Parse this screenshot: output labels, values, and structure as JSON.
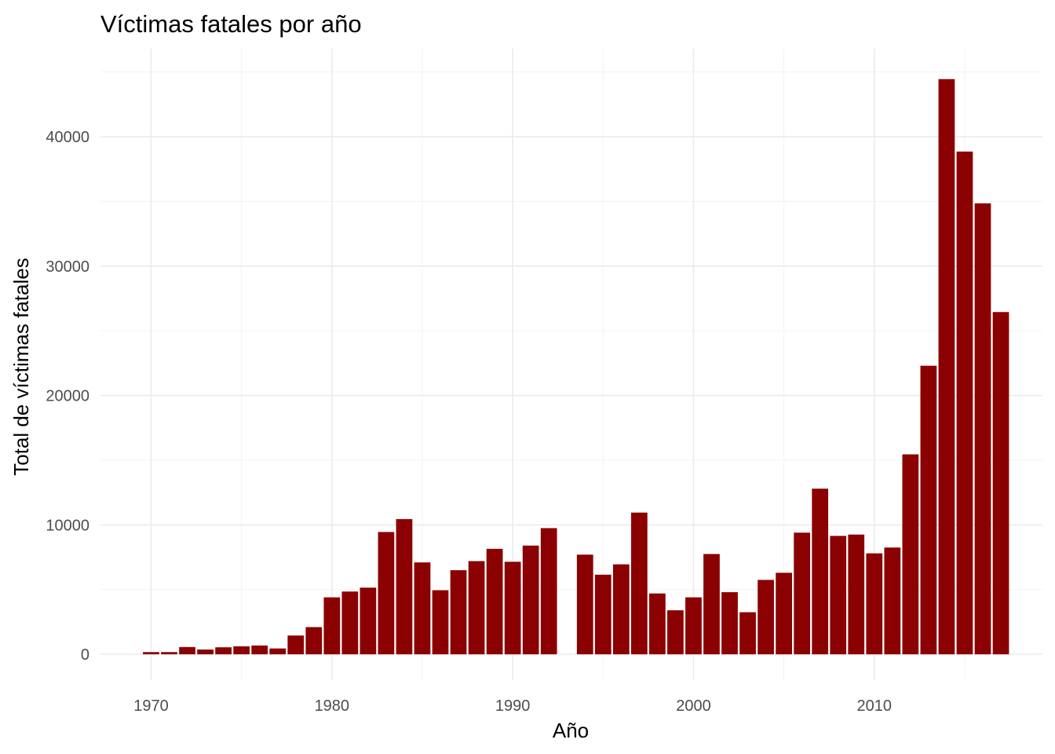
{
  "chart_data": {
    "type": "bar",
    "title": "Víctimas fatales por año",
    "xlabel": "Año",
    "ylabel": "Total de víctimas fatales",
    "bar_color": "#8B0000",
    "grid": true,
    "xlim": [
      1967.2,
      2019.3
    ],
    "ylim": [
      -2000,
      46800
    ],
    "x_ticks": [
      1970,
      1980,
      1990,
      2000,
      2010
    ],
    "y_ticks": [
      0,
      10000,
      20000,
      30000,
      40000
    ],
    "x_tick_labels": [
      "1970",
      "1980",
      "1990",
      "2000",
      "2010"
    ],
    "y_tick_labels": [
      "0",
      "10000",
      "20000",
      "30000",
      "40000"
    ],
    "x": [
      1970,
      1971,
      1972,
      1973,
      1974,
      1975,
      1976,
      1977,
      1978,
      1979,
      1980,
      1981,
      1982,
      1983,
      1984,
      1985,
      1986,
      1987,
      1988,
      1989,
      1990,
      1991,
      1992,
      1994,
      1995,
      1996,
      1997,
      1998,
      1999,
      2000,
      2001,
      2002,
      2003,
      2004,
      2005,
      2006,
      2007,
      2008,
      2009,
      2010,
      2011,
      2012,
      2013,
      2014,
      2015,
      2016,
      2017
    ],
    "values": [
      170,
      170,
      560,
      370,
      540,
      620,
      680,
      450,
      1450,
      2100,
      4400,
      4850,
      5150,
      9450,
      10450,
      7100,
      4950,
      6500,
      7200,
      8150,
      7150,
      8400,
      9750,
      7700,
      6150,
      6950,
      10950,
      4700,
      3400,
      4400,
      7750,
      4800,
      3250,
      5750,
      6300,
      9400,
      12800,
      9150,
      9250,
      7800,
      8250,
      15450,
      22300,
      44450,
      38850,
      34850,
      26450
    ]
  }
}
